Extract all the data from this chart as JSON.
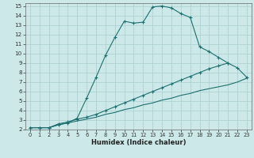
{
  "xlabel": "Humidex (Indice chaleur)",
  "bg_color": "#cce8e8",
  "grid_color": "#aacece",
  "line_color": "#1e7070",
  "xlim": [
    -0.5,
    23.5
  ],
  "ylim": [
    2,
    15.3
  ],
  "xticks": [
    0,
    1,
    2,
    3,
    4,
    5,
    6,
    7,
    8,
    9,
    10,
    11,
    12,
    13,
    14,
    15,
    16,
    17,
    18,
    19,
    20,
    21,
    22,
    23
  ],
  "yticks": [
    2,
    3,
    4,
    5,
    6,
    7,
    8,
    9,
    10,
    11,
    12,
    13,
    14,
    15
  ],
  "curve1_x": [
    0,
    1,
    2,
    3,
    4,
    5,
    6,
    7,
    8,
    9,
    10,
    11,
    12,
    13,
    14,
    15,
    16,
    17,
    18,
    19,
    20,
    21,
    22,
    23
  ],
  "curve1_y": [
    2.2,
    2.2,
    2.2,
    2.5,
    2.7,
    3.2,
    5.3,
    7.5,
    9.8,
    11.7,
    13.4,
    13.2,
    13.3,
    14.9,
    15.0,
    14.8,
    14.2,
    13.8,
    10.7,
    10.2,
    9.6,
    9.0,
    null,
    null
  ],
  "curve2_x": [
    0,
    1,
    2,
    3,
    4,
    5,
    6,
    7,
    8,
    9,
    10,
    11,
    12,
    13,
    14,
    15,
    16,
    17,
    18,
    19,
    20,
    21,
    22,
    23
  ],
  "curve2_y": [
    2.2,
    2.2,
    2.2,
    2.6,
    2.8,
    3.1,
    3.3,
    3.6,
    4.0,
    4.4,
    4.8,
    5.2,
    5.6,
    6.0,
    6.4,
    6.8,
    7.2,
    7.6,
    8.0,
    8.4,
    8.7,
    9.0,
    8.5,
    7.5
  ],
  "curve3_x": [
    0,
    1,
    2,
    3,
    4,
    5,
    6,
    7,
    8,
    9,
    10,
    11,
    12,
    13,
    14,
    15,
    16,
    17,
    18,
    19,
    20,
    21,
    22,
    23
  ],
  "curve3_y": [
    2.2,
    2.2,
    2.2,
    2.5,
    2.7,
    2.9,
    3.1,
    3.3,
    3.6,
    3.8,
    4.1,
    4.3,
    4.6,
    4.8,
    5.1,
    5.3,
    5.6,
    5.8,
    6.1,
    6.3,
    6.5,
    6.7,
    7.0,
    7.4
  ]
}
